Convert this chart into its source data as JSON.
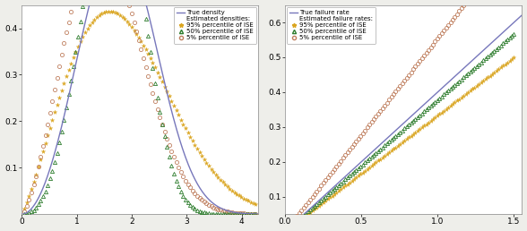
{
  "panel1": {
    "xlim": [
      0,
      4.3
    ],
    "ylim": [
      0,
      0.45
    ],
    "xticks": [
      0,
      1,
      2,
      3,
      4
    ],
    "yticks": [
      0.1,
      0.2,
      0.3,
      0.4
    ],
    "true_color": "#7777bb",
    "p95_color": "#DAA520",
    "p50_color": "#2e7d2e",
    "p5_color": "#c08060",
    "legend_labels": [
      "True density",
      "Estimated densities:",
      "95% percentile of ISE",
      "50% percentile of ISE",
      "5% percentile of ISE"
    ]
  },
  "panel2": {
    "xlim": [
      0.0,
      1.55
    ],
    "ylim": [
      0.05,
      0.65
    ],
    "xticks": [
      0.0,
      0.5,
      1.0,
      1.5
    ],
    "yticks": [
      0.1,
      0.2,
      0.3,
      0.4,
      0.5,
      0.6
    ],
    "true_color": "#7777bb",
    "p95_color": "#DAA520",
    "p50_color": "#2e7d2e",
    "p5_color": "#c08060",
    "legend_labels": [
      "True failure rate",
      "Estimated failure rates:",
      "95% percentile of ISE",
      "50% percentile of ISE",
      "5% percentile of ISE"
    ]
  },
  "background_color": "#eeeeea",
  "panel_bg": "#ffffff",
  "fontsize": 7.0,
  "marker_size": 3.0,
  "n_points": 100
}
